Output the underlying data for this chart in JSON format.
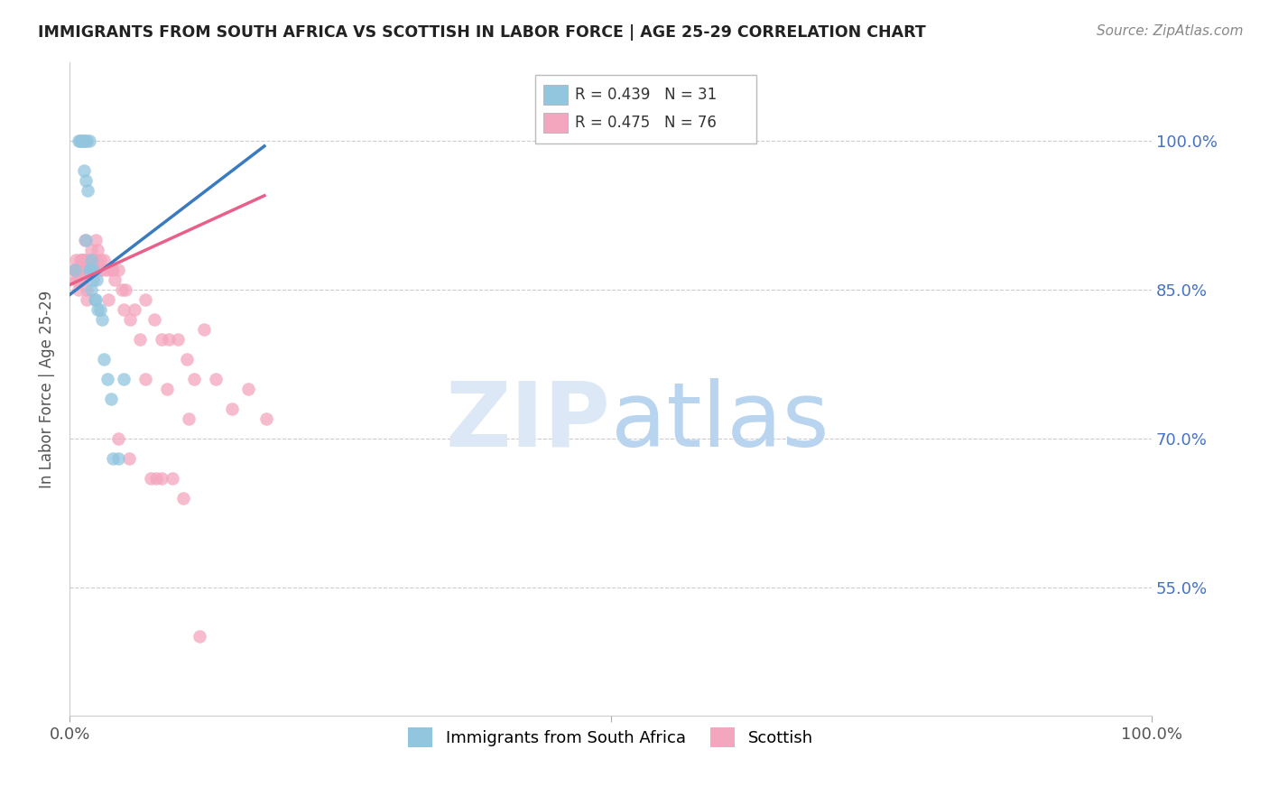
{
  "title": "IMMIGRANTS FROM SOUTH AFRICA VS SCOTTISH IN LABOR FORCE | AGE 25-29 CORRELATION CHART",
  "source": "Source: ZipAtlas.com",
  "ylabel": "In Labor Force | Age 25-29",
  "xlim": [
    0.0,
    1.0
  ],
  "ylim": [
    0.42,
    1.08
  ],
  "yticks": [
    0.55,
    0.7,
    0.85,
    1.0
  ],
  "ytick_labels": [
    "55.0%",
    "70.0%",
    "85.0%",
    "100.0%"
  ],
  "blue_color": "#92c5de",
  "pink_color": "#f4a6be",
  "blue_line_color": "#3a7abf",
  "pink_line_color": "#e8608a",
  "background_color": "#ffffff",
  "grid_color": "#cccccc",
  "blue_scatter_x": [
    0.005,
    0.008,
    0.01,
    0.01,
    0.012,
    0.013,
    0.013,
    0.014,
    0.015,
    0.015,
    0.016,
    0.017,
    0.018,
    0.018,
    0.019,
    0.02,
    0.02,
    0.022,
    0.022,
    0.023,
    0.024,
    0.025,
    0.026,
    0.028,
    0.03,
    0.032,
    0.035,
    0.038,
    0.04,
    0.045,
    0.05
  ],
  "blue_scatter_y": [
    0.87,
    1.0,
    1.0,
    1.0,
    1.0,
    1.0,
    0.97,
    1.0,
    0.96,
    0.9,
    1.0,
    0.95,
    1.0,
    0.87,
    0.87,
    0.88,
    0.85,
    0.87,
    0.86,
    0.84,
    0.84,
    0.86,
    0.83,
    0.83,
    0.82,
    0.78,
    0.76,
    0.74,
    0.68,
    0.68,
    0.76
  ],
  "pink_scatter_x": [
    0.004,
    0.005,
    0.006,
    0.006,
    0.007,
    0.007,
    0.008,
    0.008,
    0.009,
    0.009,
    0.01,
    0.01,
    0.01,
    0.011,
    0.011,
    0.012,
    0.012,
    0.013,
    0.013,
    0.014,
    0.014,
    0.015,
    0.015,
    0.016,
    0.016,
    0.017,
    0.018,
    0.019,
    0.02,
    0.02,
    0.021,
    0.021,
    0.022,
    0.023,
    0.024,
    0.025,
    0.026,
    0.027,
    0.028,
    0.03,
    0.032,
    0.034,
    0.036,
    0.038,
    0.04,
    0.042,
    0.045,
    0.048,
    0.052,
    0.056,
    0.06,
    0.065,
    0.07,
    0.078,
    0.085,
    0.092,
    0.1,
    0.108,
    0.115,
    0.124,
    0.135,
    0.15,
    0.165,
    0.182,
    0.05,
    0.07,
    0.09,
    0.11,
    0.045,
    0.055,
    0.075,
    0.08,
    0.085,
    0.095,
    0.105,
    0.12
  ],
  "pink_scatter_y": [
    0.87,
    0.87,
    0.88,
    0.86,
    0.87,
    0.86,
    0.87,
    0.85,
    0.87,
    0.86,
    0.88,
    0.87,
    0.86,
    0.88,
    0.87,
    0.88,
    0.86,
    0.88,
    0.87,
    0.9,
    0.88,
    0.88,
    0.87,
    0.85,
    0.84,
    0.87,
    0.87,
    0.88,
    0.89,
    0.87,
    0.88,
    0.87,
    0.88,
    0.87,
    0.9,
    0.88,
    0.89,
    0.87,
    0.88,
    0.87,
    0.88,
    0.87,
    0.84,
    0.87,
    0.87,
    0.86,
    0.87,
    0.85,
    0.85,
    0.82,
    0.83,
    0.8,
    0.84,
    0.82,
    0.8,
    0.8,
    0.8,
    0.78,
    0.76,
    0.81,
    0.76,
    0.73,
    0.75,
    0.72,
    0.83,
    0.76,
    0.75,
    0.72,
    0.7,
    0.68,
    0.66,
    0.66,
    0.66,
    0.66,
    0.64,
    0.5
  ],
  "blue_trendline_x": [
    0.0,
    0.18
  ],
  "blue_trendline_y": [
    0.845,
    0.995
  ],
  "pink_trendline_x": [
    0.0,
    0.18
  ],
  "pink_trendline_y": [
    0.855,
    0.945
  ]
}
